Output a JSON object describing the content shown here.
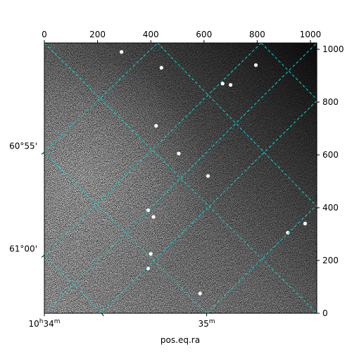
{
  "chart_data": {
    "type": "heatmap",
    "title": "",
    "xlabel": "pos.eq.ra",
    "ylabel": "",
    "pixel_axes": {
      "xlim": [
        0,
        1024
      ],
      "ylim": [
        0,
        1024
      ],
      "top_ticks": [
        {
          "value": 0,
          "label": "0"
        },
        {
          "value": 200,
          "label": "200"
        },
        {
          "value": 400,
          "label": "400"
        },
        {
          "value": 600,
          "label": "600"
        },
        {
          "value": 800,
          "label": "800"
        },
        {
          "value": 1000,
          "label": "1000"
        }
      ],
      "right_ticks": [
        {
          "value": 0,
          "label": "0"
        },
        {
          "value": 200,
          "label": "200"
        },
        {
          "value": 400,
          "label": "400"
        },
        {
          "value": 600,
          "label": "600"
        },
        {
          "value": 800,
          "label": "800"
        },
        {
          "value": 1000,
          "label": "1000"
        }
      ]
    },
    "world_axes": {
      "ra_ticks": [
        {
          "label_main": "10",
          "label_h": "h",
          "label_min": "34",
          "label_m": "m",
          "x": 0
        },
        {
          "label_main": "35",
          "label_h": "",
          "label_min": "",
          "label_m": "m",
          "x": 610
        }
      ],
      "dec_ticks": [
        {
          "label": "60°55'",
          "y": 610
        },
        {
          "label": "61°00'",
          "y": 220
        }
      ]
    },
    "grid": {
      "color": "#00d8d8",
      "style": "dashed",
      "lines_family_a": [
        {
          "x1": 0,
          "y1": 610,
          "x2": 425,
          "y2": 1024
        },
        {
          "x1": 0,
          "y1": 220,
          "x2": 815,
          "y2": 1024
        },
        {
          "x1": 210,
          "y1": 0,
          "x2": 1024,
          "y2": 800
        },
        {
          "x1": 610,
          "y1": 0,
          "x2": 1024,
          "y2": 405
        }
      ],
      "lines_family_b": [
        {
          "x1": 0,
          "y1": 0,
          "x2": 425,
          "y2": 1024
        },
        {
          "x1": 0,
          "y1": 0,
          "x2": 0,
          "y2": 0
        },
        {
          "x1": 0,
          "y1": 0,
          "x2": 0,
          "y2": 0
        }
      ],
      "lines_nw_se": [
        {
          "x1": 10,
          "y1": 1024,
          "x2": 1024,
          "y2": 20
        },
        {
          "x1": 0,
          "y1": 610,
          "x2": 1024,
          "y2": -400
        }
      ]
    },
    "image": {
      "colormap": "gray",
      "background_description": "noisy field, brighter on left, darker on upper right",
      "dark_corner": "top-right",
      "bright_stars": [
        {
          "x": 290,
          "y": 990
        },
        {
          "x": 440,
          "y": 930
        },
        {
          "x": 795,
          "y": 940
        },
        {
          "x": 670,
          "y": 870
        },
        {
          "x": 700,
          "y": 865
        },
        {
          "x": 420,
          "y": 710
        },
        {
          "x": 505,
          "y": 605
        },
        {
          "x": 615,
          "y": 520
        },
        {
          "x": 410,
          "y": 365
        },
        {
          "x": 390,
          "y": 390
        },
        {
          "x": 915,
          "y": 305
        },
        {
          "x": 980,
          "y": 340
        },
        {
          "x": 400,
          "y": 225
        },
        {
          "x": 390,
          "y": 170
        },
        {
          "x": 585,
          "y": 75
        }
      ]
    }
  }
}
